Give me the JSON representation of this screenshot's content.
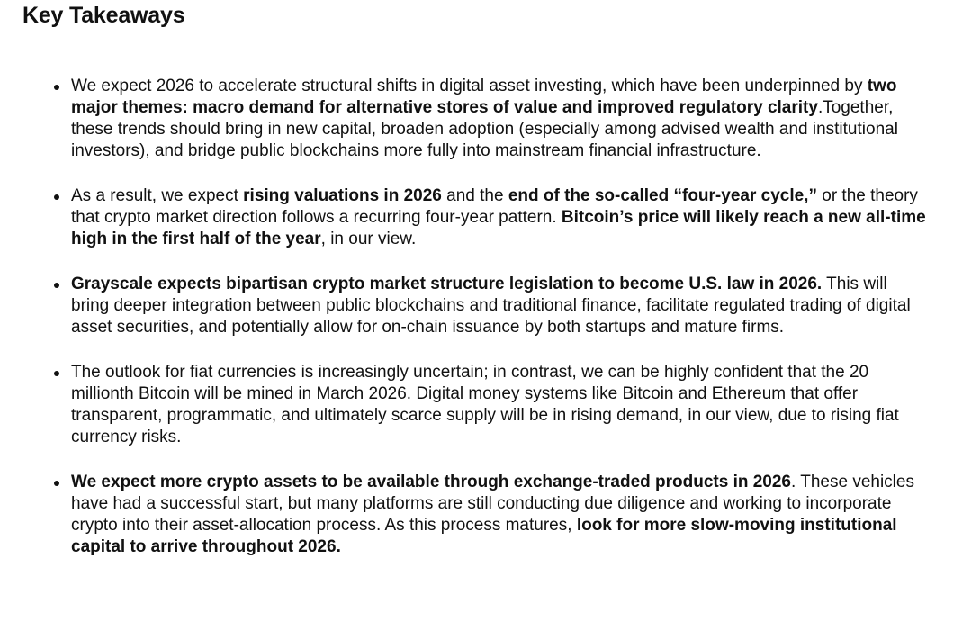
{
  "title": "Key Takeaways",
  "bullets": [
    [
      {
        "text": "We expect 2026 to accelerate structural shifts in digital asset investing, which have been underpinned by ",
        "bold": false
      },
      {
        "text": "two major themes: macro demand for alternative stores of value and improved regulatory clarity",
        "bold": true
      },
      {
        "text": ".Together, these trends should bring in new capital, broaden adoption (especially among advised wealth and institutional investors), and bridge public blockchains more fully into mainstream financial infrastructure.",
        "bold": false
      }
    ],
    [
      {
        "text": "As a result, we expect ",
        "bold": false
      },
      {
        "text": "rising valuations in 2026",
        "bold": true
      },
      {
        "text": " and the ",
        "bold": false
      },
      {
        "text": "end of the so-called “four-year cycle,”",
        "bold": true
      },
      {
        "text": " or the theory that crypto market direction follows a recurring four-year pattern. ",
        "bold": false
      },
      {
        "text": "Bitcoin’s price will likely reach a new all-time high in the first half of the year",
        "bold": true
      },
      {
        "text": ", in our view.",
        "bold": false
      }
    ],
    [
      {
        "text": "Grayscale expects bipartisan crypto market structure legislation to become U.S. law in 2026.",
        "bold": true
      },
      {
        "text": " This will bring deeper integration between public blockchains and traditional finance, facilitate regulated trading of digital asset securities, and potentially allow for on-chain issuance by both startups and mature firms.",
        "bold": false
      }
    ],
    [
      {
        "text": "The outlook for fiat currencies is increasingly uncertain; in contrast, we can be highly confident that the 20 millionth Bitcoin will be mined in March 2026. Digital money systems like Bitcoin and Ethereum that offer transparent, programmatic, and ultimately scarce supply will be in rising demand, in our view, due to rising fiat currency risks.",
        "bold": false
      }
    ],
    [
      {
        "text": "We expect more crypto assets to be available through exchange-traded products in 2026",
        "bold": true
      },
      {
        "text": ". These vehicles have had a successful start, but many platforms are still conducting due diligence and working to incorporate crypto into their asset-allocation process. As this process matures, ",
        "bold": false
      },
      {
        "text": "look for more slow-moving institutional capital to arrive throughout 2026.",
        "bold": true
      }
    ]
  ]
}
